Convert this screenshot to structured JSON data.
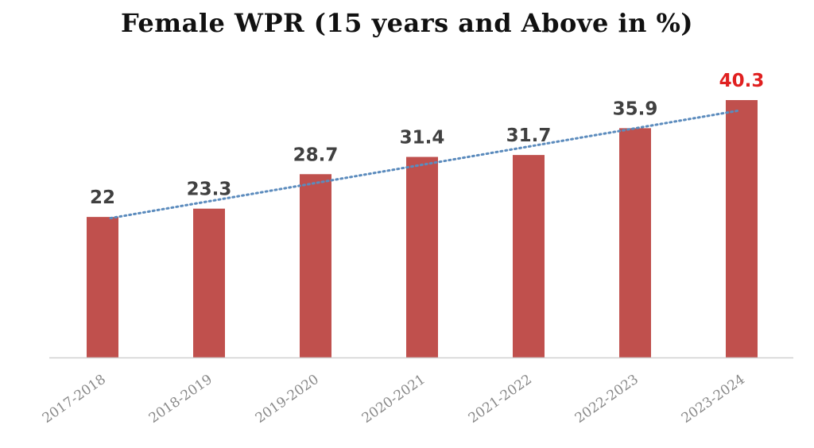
{
  "chart_data": {
    "type": "bar",
    "title": "Female WPR (15 years and Above in %)",
    "categories": [
      "2017-2018",
      "2018-2019",
      "2019-2020",
      "2020-2021",
      "2021-2022",
      "2022-2023",
      "2023-2024"
    ],
    "values": [
      22,
      23.3,
      28.7,
      31.4,
      31.7,
      35.9,
      40.3
    ],
    "data_labels": [
      "22",
      "23.3",
      "28.7",
      "31.4",
      "31.7",
      "35.9",
      "40.3"
    ],
    "highlighted_label_index": 6,
    "ylim": [
      0,
      40.3
    ],
    "trendline": "linear-dotted",
    "grid": false,
    "legend": "none",
    "colors": {
      "bar": "#c0504d",
      "trendline": "#5b8bbd",
      "highlight_label": "#e02020",
      "label": "#404040",
      "tick": "#8a8a8a",
      "axis": "#d0d0d0"
    }
  }
}
